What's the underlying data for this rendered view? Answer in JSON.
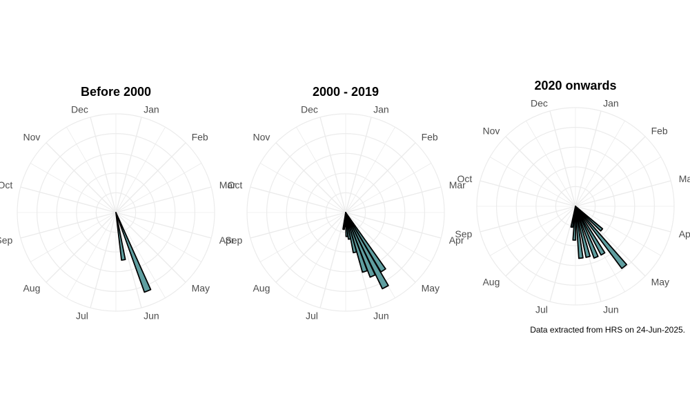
{
  "caption": "Data extracted from HRS on 24-Jun-2025.",
  "colors": {
    "bar_fill": "#5f9ea0",
    "bar_stroke": "#000000",
    "grid": "#ebebeb",
    "label": "#4d4d4d"
  },
  "chart_data": [
    {
      "type": "polar-bar",
      "title": "Before 2000",
      "categories": [
        "Jan",
        "Feb",
        "Mar",
        "Apr",
        "May",
        "Jun",
        "Jul",
        "Aug",
        "Sep",
        "Oct",
        "Nov",
        "Dec"
      ],
      "bars": [
        {
          "angle_deg": 158,
          "value": 3.0
        },
        {
          "angle_deg": 171,
          "value": 1.7
        }
      ],
      "rmax": 3.5,
      "grid": true
    },
    {
      "type": "polar-bar",
      "title": "2000 - 2019",
      "categories": [
        "Jan",
        "Feb",
        "Mar",
        "Apr",
        "May",
        "Jun",
        "Jul",
        "Aug",
        "Sep",
        "Oct",
        "Nov",
        "Dec"
      ],
      "bars": [
        {
          "angle_deg": 147,
          "value": 2.45
        },
        {
          "angle_deg": 152,
          "value": 3.0
        },
        {
          "angle_deg": 157,
          "value": 2.45
        },
        {
          "angle_deg": 162,
          "value": 2.2
        },
        {
          "angle_deg": 167,
          "value": 1.45
        },
        {
          "angle_deg": 172,
          "value": 0.95
        },
        {
          "angle_deg": 177,
          "value": 0.85
        },
        {
          "angle_deg": 182,
          "value": 0.5
        },
        {
          "angle_deg": 187,
          "value": 0.6
        }
      ],
      "rmax": 3.5,
      "grid": true
    },
    {
      "type": "polar-bar",
      "title": "2020 onwards",
      "categories": [
        "Jan",
        "Feb",
        "Mar",
        "Apr",
        "May",
        "Jun",
        "Jul",
        "Aug",
        "Sep",
        "Oct",
        "Nov",
        "Dec"
      ],
      "bars": [
        {
          "angle_deg": 132,
          "value": 1.25
        },
        {
          "angle_deg": 141,
          "value": 2.75
        },
        {
          "angle_deg": 150,
          "value": 1.95
        },
        {
          "angle_deg": 158,
          "value": 1.95
        },
        {
          "angle_deg": 166,
          "value": 1.85
        },
        {
          "angle_deg": 174,
          "value": 1.85
        },
        {
          "angle_deg": 182,
          "value": 1.2
        },
        {
          "angle_deg": 190,
          "value": 0.75
        }
      ],
      "rmax": 3.5,
      "grid": true
    }
  ]
}
